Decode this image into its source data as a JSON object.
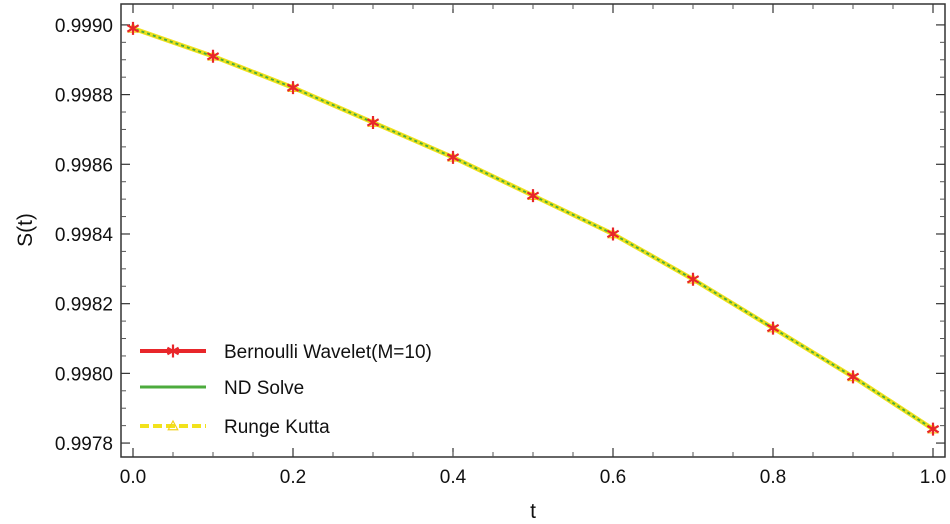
{
  "chart_data": {
    "type": "line",
    "title": "",
    "xlabel": "t",
    "ylabel": "S(t)",
    "xlim": [
      -0.015,
      1.015
    ],
    "ylim": [
      0.99776,
      0.99906
    ],
    "x_ticks": [
      0.0,
      0.2,
      0.4,
      0.6,
      0.8,
      1.0
    ],
    "x_tick_labels": [
      "0.0",
      "0.2",
      "0.4",
      "0.6",
      "0.8",
      "1.0"
    ],
    "y_ticks": [
      0.9978,
      0.998,
      0.9982,
      0.9984,
      0.9986,
      0.9988,
      0.999
    ],
    "y_tick_labels": [
      "0.9978",
      "0.9980",
      "0.9982",
      "0.9984",
      "0.9986",
      "0.9988",
      "0.9990"
    ],
    "legend_position": "bottom-left",
    "series": [
      {
        "name": "Bernoulli Wavelet(M=10)",
        "color": "#e8262a",
        "style": "solid",
        "marker": "star",
        "x": [
          0.0,
          0.1,
          0.2,
          0.3,
          0.4,
          0.5,
          0.6,
          0.7,
          0.8,
          0.9,
          1.0
        ],
        "y": [
          0.99899,
          0.99891,
          0.99882,
          0.99872,
          0.99862,
          0.99851,
          0.9984,
          0.99827,
          0.99813,
          0.99799,
          0.99784
        ]
      },
      {
        "name": "ND Solve",
        "color": "#4cab3d",
        "style": "solid",
        "marker": "none",
        "x": [
          0.0,
          0.1,
          0.2,
          0.3,
          0.4,
          0.5,
          0.6,
          0.7,
          0.8,
          0.9,
          1.0
        ],
        "y": [
          0.99899,
          0.99891,
          0.99882,
          0.99872,
          0.99862,
          0.99851,
          0.9984,
          0.99827,
          0.99813,
          0.99799,
          0.99784
        ]
      },
      {
        "name": "Runge Kutta",
        "color": "#f2e21b",
        "style": "dashed",
        "marker": "triangle",
        "x": [
          0.0,
          0.1,
          0.2,
          0.3,
          0.4,
          0.5,
          0.6,
          0.7,
          0.8,
          0.9,
          1.0
        ],
        "y": [
          0.99899,
          0.99891,
          0.99882,
          0.99872,
          0.99862,
          0.99851,
          0.9984,
          0.99827,
          0.99813,
          0.99799,
          0.99784
        ]
      }
    ]
  }
}
